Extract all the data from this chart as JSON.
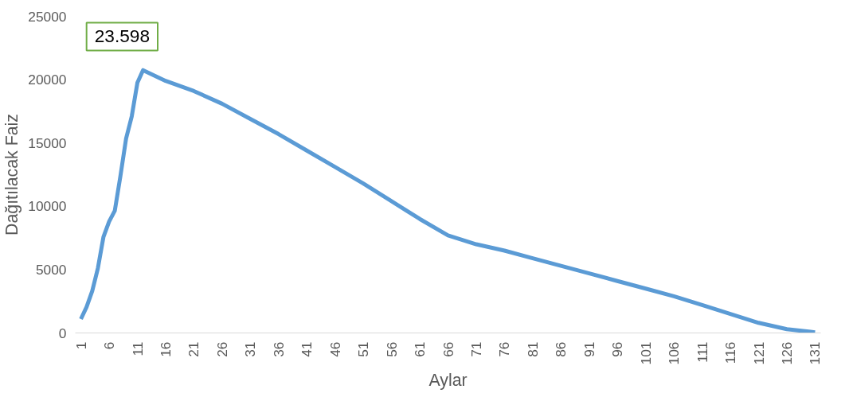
{
  "chart_data": {
    "type": "line",
    "xlabel": "Aylar",
    "ylabel": "Dağıtılacak Faiz",
    "annotations": [
      "23.598"
    ],
    "x": [
      1,
      2,
      3,
      4,
      5,
      6,
      7,
      8,
      9,
      10,
      11,
      12,
      16,
      21,
      26,
      31,
      36,
      41,
      46,
      51,
      56,
      61,
      66,
      71,
      76,
      81,
      86,
      91,
      96,
      101,
      106,
      111,
      116,
      121,
      126,
      131
    ],
    "series": [
      {
        "color": "#5b9bd5",
        "values": [
          1100,
          2050,
          3300,
          5100,
          7600,
          8800,
          9650,
          12400,
          15350,
          17100,
          19750,
          20750,
          19900,
          19100,
          18100,
          16900,
          15700,
          14400,
          13100,
          11800,
          10400,
          9000,
          7700,
          7000,
          6500,
          5900,
          5300,
          4700,
          4100,
          3500,
          2900,
          2200,
          1500,
          800,
          300,
          50
        ]
      }
    ],
    "xlim": [
      0,
      132
    ],
    "xticks": [
      1,
      6,
      11,
      16,
      21,
      26,
      31,
      36,
      41,
      46,
      51,
      56,
      61,
      66,
      71,
      76,
      81,
      86,
      91,
      96,
      101,
      106,
      111,
      116,
      121,
      126,
      131
    ],
    "ylim": [
      0,
      25000
    ],
    "yticks": [
      0,
      5000,
      10000,
      15000,
      20000,
      25000
    ],
    "grid": false,
    "marker": "none",
    "line_style": "solid"
  }
}
